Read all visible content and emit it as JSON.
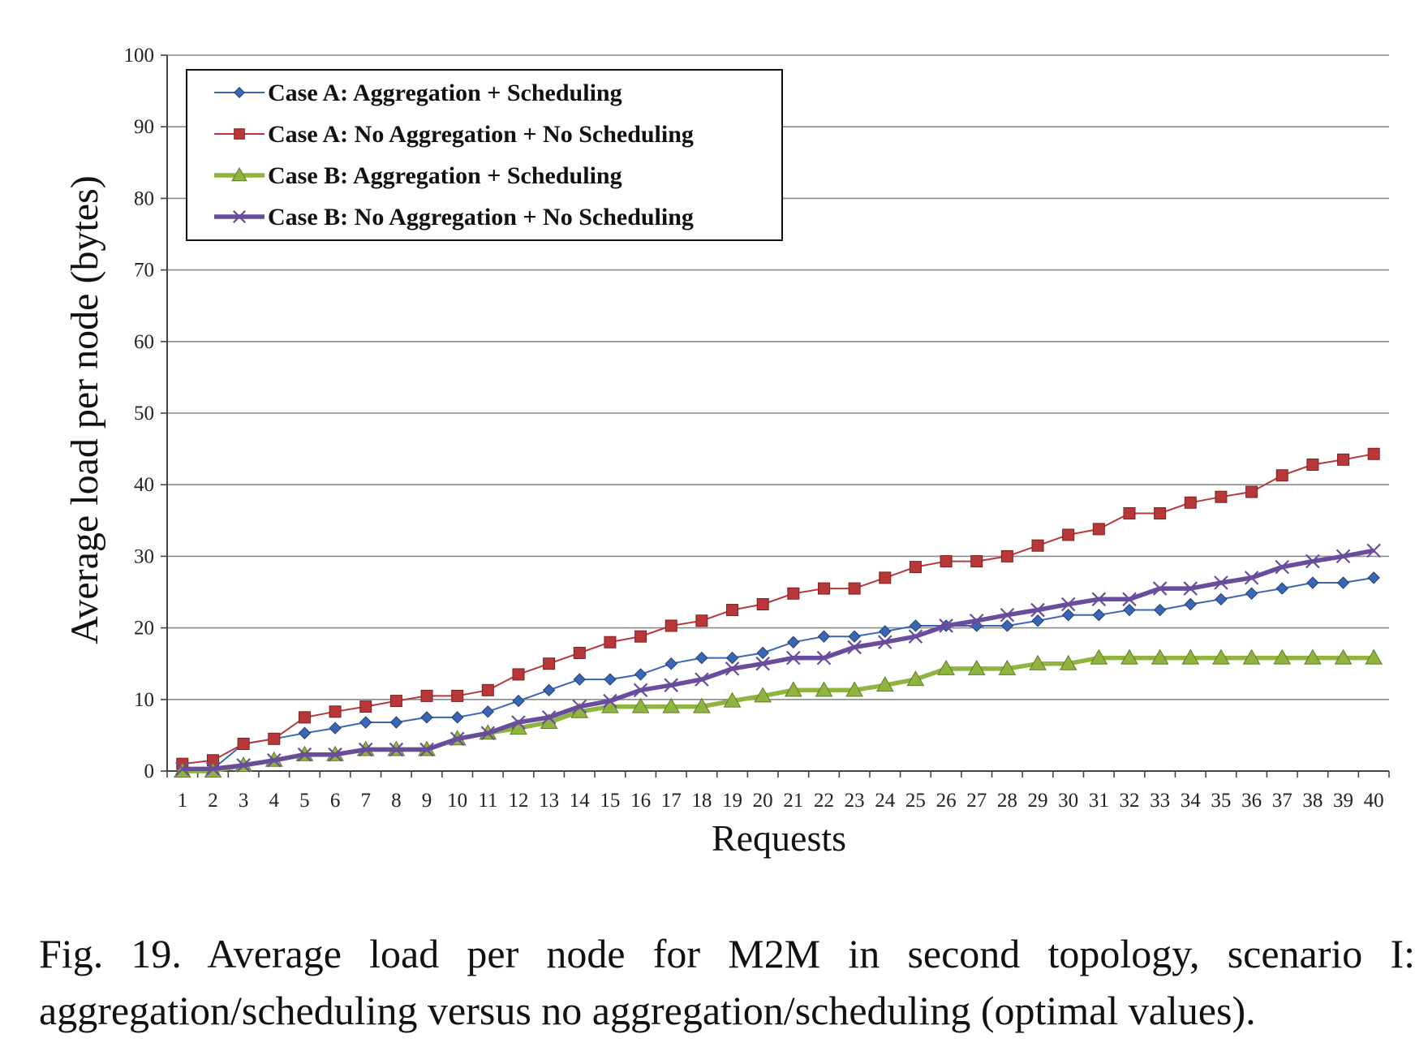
{
  "chart_data": {
    "type": "line",
    "xlabel": "Requests",
    "ylabel": "Average load per node (bytes)",
    "ylim": [
      0,
      100
    ],
    "yticks": [
      0,
      10,
      20,
      30,
      40,
      50,
      60,
      70,
      80,
      90,
      100
    ],
    "categories": [
      "1",
      "2",
      "3",
      "4",
      "5",
      "6",
      "7",
      "8",
      "9",
      "10",
      "11",
      "12",
      "13",
      "14",
      "15",
      "16",
      "17",
      "18",
      "19",
      "20",
      "21",
      "22",
      "23",
      "24",
      "25",
      "26",
      "27",
      "28",
      "29",
      "30",
      "31",
      "32",
      "33",
      "34",
      "35",
      "36",
      "37",
      "38",
      "39",
      "40"
    ],
    "grid": "horizontal",
    "legend_position": "top-left",
    "series": [
      {
        "name": "Case A: Aggregation + Scheduling",
        "color": "#3a66b3",
        "marker": "diamond",
        "values": [
          0.5,
          0.3,
          3.8,
          4.5,
          5.3,
          6.0,
          6.8,
          6.8,
          7.5,
          7.5,
          8.3,
          9.8,
          11.3,
          12.8,
          12.8,
          13.5,
          15.0,
          15.8,
          15.8,
          16.5,
          18.0,
          18.8,
          18.8,
          19.5,
          20.3,
          20.3,
          20.3,
          20.3,
          21.0,
          21.8,
          21.8,
          22.5,
          22.5,
          23.3,
          24.0,
          24.8,
          25.5,
          26.3,
          26.3,
          27.0
        ]
      },
      {
        "name": "Case A: No Aggregation + No Scheduling",
        "color": "#b8383a",
        "marker": "square",
        "values": [
          1.0,
          1.5,
          3.8,
          4.5,
          7.5,
          8.3,
          9.0,
          9.8,
          10.5,
          10.5,
          11.3,
          13.5,
          15.0,
          16.5,
          18.0,
          18.8,
          20.3,
          21.0,
          22.5,
          23.3,
          24.8,
          25.5,
          25.5,
          27.0,
          28.5,
          29.3,
          29.3,
          30.0,
          31.5,
          33.0,
          33.8,
          36.0,
          36.0,
          37.5,
          38.3,
          39.0,
          41.3,
          42.8,
          43.5,
          44.3
        ]
      },
      {
        "name": "Case B: Aggregation + Scheduling",
        "color": "#8fb43f",
        "marker": "triangle",
        "values": [
          0.0,
          0.0,
          0.8,
          1.5,
          2.3,
          2.3,
          3.0,
          3.0,
          3.0,
          4.5,
          5.3,
          6.0,
          6.8,
          8.3,
          9.0,
          9.0,
          9.0,
          9.0,
          9.8,
          10.5,
          11.3,
          11.3,
          11.3,
          12.0,
          12.8,
          14.3,
          14.3,
          14.3,
          15.0,
          15.0,
          15.8,
          15.8,
          15.8,
          15.8,
          15.8,
          15.8,
          15.8,
          15.8,
          15.8,
          15.8
        ]
      },
      {
        "name": "Case B: No Aggregation + No Scheduling",
        "color": "#6a4c9c",
        "marker": "x",
        "values": [
          0.3,
          0.3,
          0.8,
          1.5,
          2.3,
          2.3,
          3.0,
          3.0,
          3.0,
          4.5,
          5.3,
          6.8,
          7.5,
          9.0,
          9.8,
          11.3,
          12.0,
          12.8,
          14.3,
          15.0,
          15.8,
          15.8,
          17.3,
          18.0,
          18.8,
          20.3,
          21.0,
          21.8,
          22.5,
          23.3,
          24.0,
          24.0,
          25.5,
          25.5,
          26.3,
          27.0,
          28.5,
          29.3,
          30.0,
          30.8
        ]
      }
    ]
  },
  "caption": {
    "line1": "Fig. 19. Average load per node for M2M in second topology, scenario I:",
    "line2": "aggregation/scheduling versus no aggregation/scheduling (optimal values)."
  }
}
